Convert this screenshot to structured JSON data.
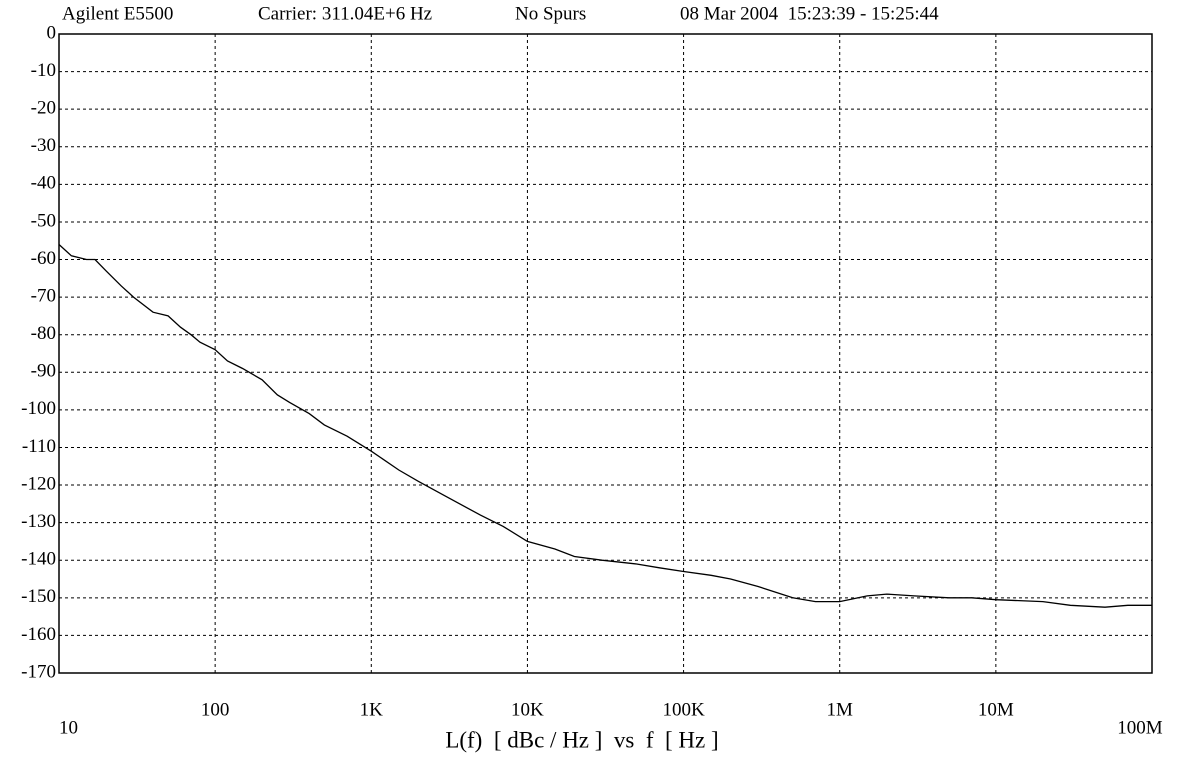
{
  "chart_data": {
    "type": "line",
    "header": [
      "Agilent E5500",
      "Carrier: 311.04E+6 Hz",
      "No Spurs",
      "08 Mar 2004  15:23:39 - 15:25:44"
    ],
    "x_label": "L(f)  [ dBc / Hz ]  vs  f  [ Hz ]",
    "xscale": "log",
    "xlim": [
      10,
      100000000
    ],
    "xticks": [
      10,
      100,
      {
        "value": 1000,
        "label": "1K"
      },
      {
        "value": 10000,
        "label": "10K"
      },
      {
        "value": 100000,
        "label": "100K"
      },
      {
        "value": 1000000,
        "label": "1M"
      },
      {
        "value": 10000000,
        "label": "10M"
      },
      {
        "value": 100000000,
        "label": "100M"
      }
    ],
    "ylim": [
      -170,
      0
    ],
    "yticks": [
      0,
      -10,
      -20,
      -30,
      -40,
      -50,
      -60,
      -70,
      -80,
      -90,
      -100,
      -110,
      -120,
      -130,
      -140,
      -150,
      -160,
      -170
    ],
    "grid": true,
    "series": [
      {
        "color": "#000000",
        "x": [
          10,
          12,
          15,
          17,
          20,
          25,
          30,
          40,
          50,
          60,
          70,
          80,
          100,
          120,
          150,
          200,
          250,
          300,
          400,
          500,
          700,
          1000,
          1500,
          2000,
          3000,
          5000,
          7000,
          10000,
          15000,
          20000,
          30000,
          50000,
          70000,
          100000,
          150000,
          200000,
          300000,
          500000,
          700000,
          1000000,
          1500000,
          2000000,
          3000000,
          5000000,
          7000000,
          10000000,
          20000000,
          30000000,
          50000000,
          70000000,
          100000000
        ],
        "values": [
          -56,
          -59,
          -60,
          -60,
          -63,
          -67,
          -70,
          -74,
          -75,
          -78,
          -80,
          -82,
          -84,
          -87,
          -89,
          -92,
          -96,
          -98,
          -101,
          -104,
          -107,
          -111,
          -116,
          -119,
          -123,
          -128,
          -131,
          -135,
          -137,
          -139,
          -140,
          -141,
          -142,
          -143,
          -144,
          -145,
          -147,
          -150,
          -151,
          -151,
          -149.5,
          -149,
          -149.5,
          -150,
          -150,
          -150.5,
          -151,
          -152,
          -152.5,
          -152,
          -152
        ]
      }
    ]
  }
}
